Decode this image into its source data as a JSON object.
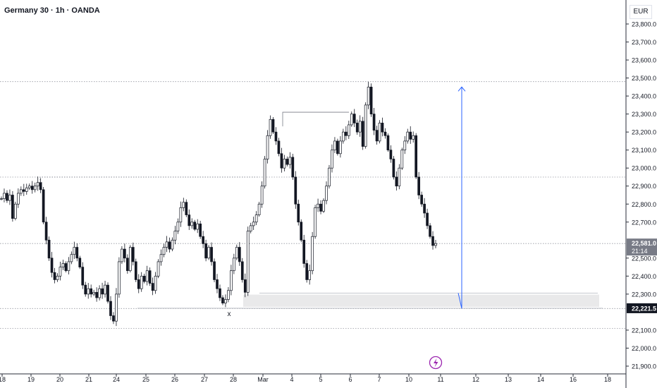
{
  "header": {
    "title": "Germany 30 · 1h · OANDA",
    "currency": "EUR"
  },
  "chart_data": {
    "type": "candlestick",
    "y_ticks": [
      23800,
      23700,
      23600,
      23500,
      23400,
      23300,
      23200,
      23100,
      23000,
      22900,
      22800,
      22700,
      22500,
      22400,
      22300,
      22100,
      22000,
      21900
    ],
    "y_tick_labels": [
      "23,800.0",
      "23,700.0",
      "23,600.0",
      "23,500.0",
      "23,400.0",
      "23,300.0",
      "23,200.0",
      "23,100.0",
      "23,000.0",
      "22,900.0",
      "22,800.0",
      "22,700.0",
      "22,500.0",
      "22,400.0",
      "22,300.0",
      "22,100.0",
      "22,000.0",
      "21,900.0"
    ],
    "x_ticks": [
      "18",
      "19",
      "20",
      "21",
      "24",
      "25",
      "26",
      "27",
      "28",
      "Mar",
      "4",
      "5",
      "6",
      "7",
      "10",
      "11",
      "12",
      "13",
      "14",
      "16",
      "18"
    ],
    "current_price": {
      "value": 22581.0,
      "label": "22,581.0",
      "countdown": "21:14",
      "color": "#787b86"
    },
    "level_price": {
      "value": 22221.5,
      "label": "22,221.5",
      "color": "#131722"
    },
    "horizontal_levels": [
      23480,
      22950,
      22220,
      22110
    ],
    "zone": {
      "top": 22305,
      "bottom": 22245
    },
    "segments": [
      {
        "from": 23310,
        "label": ""
      },
      {
        "from": 22950,
        "label": ""
      }
    ],
    "annotations": {
      "swing_marker": "x"
    },
    "projection_arrow": {
      "from": 22220,
      "to": 23450,
      "color": "#2962ff"
    },
    "events_icon": "lightning-icon",
    "close_path": [
      22830,
      22860,
      22820,
      22850,
      22720,
      22800,
      22860,
      22880,
      22870,
      22890,
      22900,
      22880,
      22900,
      22920,
      22880,
      22700,
      22600,
      22500,
      22420,
      22380,
      22400,
      22450,
      22470,
      22430,
      22480,
      22520,
      22560,
      22500,
      22450,
      22350,
      22300,
      22330,
      22300,
      22310,
      22280,
      22330,
      22300,
      22350,
      22260,
      22180,
      22150,
      22300,
      22480,
      22550,
      22500,
      22430,
      22560,
      22480,
      22380,
      22330,
      22400,
      22370,
      22430,
      22360,
      22320,
      22400,
      22480,
      22520,
      22560,
      22590,
      22550,
      22600,
      22650,
      22700,
      22780,
      22810,
      22740,
      22680,
      22700,
      22660,
      22690,
      22620,
      22580,
      22500,
      22560,
      22480,
      22380,
      22330,
      22280,
      22250,
      22270,
      22320,
      22430,
      22500,
      22560,
      22480,
      22380,
      22310,
      22650,
      22680,
      22700,
      22740,
      22800,
      22900,
      23050,
      23180,
      23270,
      23200,
      23150,
      23080,
      23000,
      23050,
      23020,
      23060,
      22950,
      22800,
      22700,
      22600,
      22470,
      22380,
      22430,
      22620,
      22780,
      22800,
      22760,
      22820,
      22900,
      23000,
      23100,
      23150,
      23080,
      23150,
      23200,
      23180,
      23240,
      23300,
      23250,
      23200,
      23260,
      23120,
      23350,
      23450,
      23300,
      23210,
      23150,
      23250,
      23200,
      23180,
      23100,
      23050,
      22950,
      22900,
      23000,
      23100,
      23150,
      23200,
      23160,
      23180,
      22950,
      22850,
      22800,
      22750,
      22680,
      22620,
      22570,
      22581
    ]
  }
}
